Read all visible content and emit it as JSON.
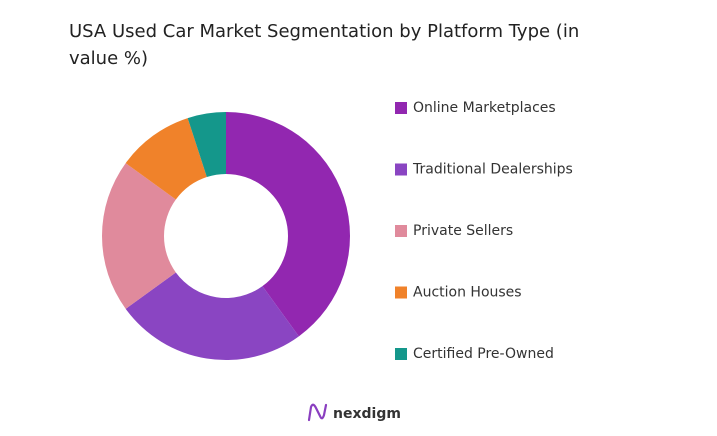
{
  "chart_data": {
    "type": "donut",
    "title": "USA Used Car Market Segmentation by Platform Type (in value %)",
    "categories": [
      "Online Marketplaces",
      "Traditional Dealerships",
      "Private Sellers",
      "Auction Houses",
      "Certified Pre-Owned"
    ],
    "values": [
      40,
      25,
      20,
      10,
      5
    ],
    "colors": [
      "#9227b0",
      "#8a45c2",
      "#e08a9c",
      "#f0822a",
      "#14978b"
    ],
    "brand": "nexdigm"
  }
}
